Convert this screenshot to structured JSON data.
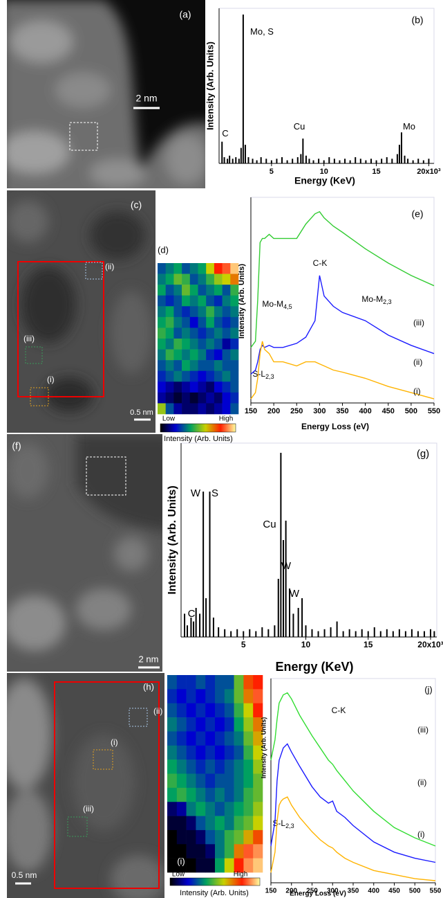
{
  "images": [
    {
      "label": "(a)",
      "scale_bar": "2 nm"
    },
    {
      "label": "(c)",
      "scale_bar": "0.5 nm",
      "regions": [
        "(ii)",
        "(iii)",
        "(i)"
      ]
    },
    {
      "label": "(f)",
      "scale_bar": "2 nm"
    },
    {
      "label": "(h)",
      "scale_bar": "0.5 nm",
      "regions": [
        "(ii)",
        "(i)",
        "(iii)"
      ]
    }
  ],
  "chart_data": [
    {
      "type": "bar",
      "label": "(b)",
      "x_label": "Energy (KeV)",
      "y_label": "Intensity (Arb. Units)",
      "color": "#000000",
      "x": [
        0.28,
        0.5,
        0.8,
        1.0,
        1.3,
        1.6,
        1.9,
        2.1,
        2.3,
        2.5,
        2.8,
        3.2,
        3.6,
        4.0,
        4.5,
        5.0,
        5.5,
        6.0,
        6.5,
        7.0,
        7.5,
        7.8,
        8.0,
        8.3,
        8.6,
        9.0,
        9.5,
        10.0,
        10.5,
        11.0,
        11.5,
        12.0,
        12.5,
        13.0,
        13.5,
        14.0,
        14.5,
        15.0,
        15.5,
        16.0,
        16.5,
        17.0,
        17.2,
        17.4,
        17.7,
        18.0,
        18.5,
        19.0,
        19.5,
        20.0
      ],
      "values": [
        0.14,
        0.04,
        0.03,
        0.05,
        0.03,
        0.04,
        0.03,
        0.1,
        0.96,
        0.12,
        0.04,
        0.03,
        0.02,
        0.04,
        0.03,
        0.02,
        0.03,
        0.04,
        0.02,
        0.03,
        0.04,
        0.06,
        0.16,
        0.05,
        0.03,
        0.02,
        0.03,
        0.02,
        0.04,
        0.03,
        0.02,
        0.03,
        0.02,
        0.04,
        0.03,
        0.02,
        0.03,
        0.02,
        0.03,
        0.04,
        0.03,
        0.06,
        0.12,
        0.2,
        0.05,
        0.03,
        0.02,
        0.03,
        0.02,
        0.03
      ],
      "xlim": [
        0,
        20.5
      ],
      "ylim": [
        0,
        1
      ],
      "xticks": [
        5,
        10,
        15,
        {
          "value": 20,
          "label": "20x10³"
        }
      ],
      "annotations": [
        {
          "text": "Mo, S"
        },
        {
          "text": "C"
        },
        {
          "text": "Cu"
        },
        {
          "text": "Mo"
        }
      ]
    },
    {
      "type": "heatmap",
      "label": "(d)",
      "values": [
        [
          0.3,
          0.35,
          0.4,
          0.3,
          0.35,
          0.4,
          0.6,
          0.8,
          0.85,
          0.95
        ],
        [
          0.35,
          0.4,
          0.5,
          0.45,
          0.3,
          0.35,
          0.45,
          0.55,
          0.6,
          0.7
        ],
        [
          0.4,
          0.3,
          0.35,
          0.5,
          0.4,
          0.3,
          0.35,
          0.4,
          0.3,
          0.45
        ],
        [
          0.3,
          0.25,
          0.3,
          0.4,
          0.35,
          0.4,
          0.3,
          0.25,
          0.35,
          0.4
        ],
        [
          0.35,
          0.4,
          0.3,
          0.25,
          0.3,
          0.35,
          0.45,
          0.35,
          0.3,
          0.35
        ],
        [
          0.4,
          0.45,
          0.35,
          0.3,
          0.2,
          0.3,
          0.4,
          0.3,
          0.25,
          0.3
        ],
        [
          0.45,
          0.4,
          0.3,
          0.35,
          0.3,
          0.25,
          0.3,
          0.35,
          0.3,
          0.35
        ],
        [
          0.4,
          0.35,
          0.45,
          0.4,
          0.35,
          0.3,
          0.35,
          0.3,
          0.15,
          0.25
        ],
        [
          0.35,
          0.45,
          0.4,
          0.35,
          0.4,
          0.35,
          0.25,
          0.2,
          0.3,
          0.35
        ],
        [
          0.3,
          0.35,
          0.3,
          0.4,
          0.35,
          0.3,
          0.3,
          0.35,
          0.3,
          0.3
        ],
        [
          0.25,
          0.3,
          0.35,
          0.3,
          0.25,
          0.2,
          0.25,
          0.3,
          0.35,
          0.3
        ],
        [
          0.2,
          0.15,
          0.1,
          0.15,
          0.2,
          0.15,
          0.1,
          0.2,
          0.25,
          0.3
        ],
        [
          0.15,
          0.1,
          0.05,
          0.1,
          0.05,
          0.1,
          0.15,
          0.1,
          0.2,
          0.25
        ],
        [
          0.55,
          0.3,
          0.15,
          0.1,
          0.1,
          0.15,
          0.1,
          0.15,
          0.2,
          0.3
        ]
      ],
      "colormap": [
        "#000000",
        "#0000d0",
        "#00a060",
        "#c8d000",
        "#ff2000",
        "#ffffa0"
      ],
      "colorbar": {
        "low": "Low",
        "high": "High",
        "title": "Intensity (Arb. Units)"
      }
    },
    {
      "type": "line",
      "label": "(e)",
      "x_label": "Energy Loss (eV)",
      "y_label": "Intensity (Arb. Units)",
      "x": [
        150,
        160,
        165,
        170,
        175,
        180,
        190,
        200,
        220,
        250,
        270,
        290,
        300,
        310,
        330,
        350,
        400,
        450,
        500,
        550
      ],
      "series": [
        {
          "name": "(iii)",
          "color": "#33cc33",
          "values": [
            0.27,
            0.3,
            0.5,
            0.78,
            0.8,
            0.8,
            0.82,
            0.8,
            0.8,
            0.8,
            0.87,
            0.92,
            0.93,
            0.9,
            0.86,
            0.83,
            0.75,
            0.68,
            0.62,
            0.57
          ]
        },
        {
          "name": "(ii)",
          "color": "#1a1aff",
          "values": [
            0.14,
            0.16,
            0.2,
            0.26,
            0.28,
            0.27,
            0.28,
            0.27,
            0.27,
            0.29,
            0.32,
            0.4,
            0.62,
            0.52,
            0.47,
            0.44,
            0.4,
            0.33,
            0.28,
            0.24
          ]
        },
        {
          "name": "(i)",
          "color": "#ffb300",
          "values": [
            0.02,
            0.05,
            0.12,
            0.24,
            0.3,
            0.26,
            0.24,
            0.2,
            0.2,
            0.18,
            0.2,
            0.2,
            0.19,
            0.18,
            0.16,
            0.15,
            0.12,
            0.08,
            0.05,
            0.02
          ]
        }
      ],
      "xlim": [
        150,
        550
      ],
      "ylim": [
        0,
        1
      ],
      "xticks": [
        150,
        200,
        250,
        300,
        350,
        400,
        450,
        500,
        550
      ],
      "annotations": [
        {
          "text": "C-K"
        },
        {
          "text": "Mo-M",
          "sub": "4,5"
        },
        {
          "text": "Mo-M",
          "sub": "2,3"
        },
        {
          "text": "S-L",
          "sub": "2,3"
        }
      ]
    },
    {
      "type": "bar",
      "label": "(g)",
      "x_label": "Energy (KeV)",
      "y_label": "Intensity (Arb. Units)",
      "color": "#000000",
      "x": [
        0.28,
        0.5,
        0.8,
        1.0,
        1.2,
        1.5,
        1.78,
        2.0,
        2.3,
        2.6,
        3.0,
        3.5,
        4.0,
        4.5,
        5.0,
        5.5,
        6.0,
        6.5,
        7.0,
        7.5,
        7.8,
        8.0,
        8.2,
        8.4,
        8.7,
        9.0,
        9.4,
        9.7,
        10.0,
        10.5,
        11.0,
        11.5,
        12.0,
        12.5,
        13.0,
        13.5,
        14.0,
        14.5,
        15.0,
        15.5,
        16.0,
        16.5,
        17.0,
        17.5,
        18.0,
        18.5,
        19.0,
        19.5,
        20.0,
        20.3
      ],
      "values": [
        0.12,
        0.06,
        0.1,
        0.08,
        0.15,
        0.12,
        0.75,
        0.2,
        0.75,
        0.1,
        0.05,
        0.04,
        0.03,
        0.04,
        0.03,
        0.04,
        0.03,
        0.05,
        0.04,
        0.06,
        0.3,
        0.95,
        0.5,
        0.6,
        0.25,
        0.12,
        0.15,
        0.2,
        0.06,
        0.04,
        0.03,
        0.04,
        0.05,
        0.08,
        0.03,
        0.04,
        0.03,
        0.04,
        0.03,
        0.05,
        0.03,
        0.04,
        0.03,
        0.04,
        0.03,
        0.04,
        0.03,
        0.03,
        0.04,
        0.03
      ],
      "xlim": [
        0,
        20.5
      ],
      "ylim": [
        0,
        1
      ],
      "xticks": [
        5,
        10,
        15,
        {
          "value": 20,
          "label": "20x10³"
        }
      ],
      "annotations": [
        {
          "text": "W"
        },
        {
          "text": "S"
        },
        {
          "text": "Cu"
        },
        {
          "text": "W"
        },
        {
          "text": "W"
        },
        {
          "text": "C"
        }
      ]
    },
    {
      "type": "heatmap",
      "label": "(i)",
      "values": [
        [
          0.3,
          0.25,
          0.25,
          0.3,
          0.25,
          0.3,
          0.3,
          0.5,
          0.75,
          0.8
        ],
        [
          0.25,
          0.2,
          0.25,
          0.2,
          0.25,
          0.3,
          0.35,
          0.5,
          0.7,
          0.85
        ],
        [
          0.3,
          0.25,
          0.2,
          0.25,
          0.2,
          0.25,
          0.3,
          0.45,
          0.6,
          0.8
        ],
        [
          0.35,
          0.3,
          0.25,
          0.2,
          0.25,
          0.2,
          0.25,
          0.4,
          0.55,
          0.7
        ],
        [
          0.3,
          0.25,
          0.2,
          0.25,
          0.2,
          0.25,
          0.3,
          0.35,
          0.5,
          0.65
        ],
        [
          0.35,
          0.3,
          0.25,
          0.2,
          0.25,
          0.2,
          0.25,
          0.3,
          0.45,
          0.6
        ],
        [
          0.4,
          0.35,
          0.3,
          0.25,
          0.3,
          0.25,
          0.3,
          0.35,
          0.4,
          0.55
        ],
        [
          0.45,
          0.4,
          0.35,
          0.3,
          0.25,
          0.3,
          0.3,
          0.35,
          0.4,
          0.5
        ],
        [
          0.4,
          0.45,
          0.4,
          0.35,
          0.3,
          0.35,
          0.3,
          0.35,
          0.45,
          0.5
        ],
        [
          0.1,
          0.15,
          0.35,
          0.4,
          0.35,
          0.3,
          0.35,
          0.4,
          0.45,
          0.55
        ],
        [
          0.05,
          0.05,
          0.1,
          0.3,
          0.35,
          0.4,
          0.35,
          0.45,
          0.5,
          0.6
        ],
        [
          0,
          0.05,
          0.05,
          0.1,
          0.3,
          0.35,
          0.45,
          0.5,
          0.65,
          0.75
        ],
        [
          0,
          0,
          0.05,
          0.05,
          0.1,
          0.35,
          0.45,
          0.7,
          0.85,
          0.9
        ],
        [
          0,
          0,
          0,
          0.05,
          0.05,
          0.4,
          0.6,
          0.8,
          0.9,
          0.95
        ]
      ],
      "colormap": [
        "#000000",
        "#0000d0",
        "#00a060",
        "#c8d000",
        "#ff2000",
        "#ffffa0"
      ],
      "colorbar": {
        "low": "Low",
        "high": "High",
        "title": "Intensity (Arb. Units)"
      }
    },
    {
      "type": "line",
      "label": "(j)",
      "x_label": "Energy Loss (eV)",
      "y_label": "Intensity (Arb. Units)",
      "x": [
        150,
        160,
        165,
        170,
        175,
        180,
        190,
        200,
        220,
        250,
        270,
        290,
        300,
        310,
        330,
        350,
        400,
        450,
        500,
        550
      ],
      "series": [
        {
          "name": "(iii)",
          "color": "#33dd33",
          "values": [
            0.6,
            0.7,
            0.8,
            0.88,
            0.9,
            0.92,
            0.93,
            0.9,
            0.82,
            0.72,
            0.66,
            0.6,
            0.58,
            0.55,
            0.5,
            0.45,
            0.35,
            0.27,
            0.22,
            0.18
          ]
        },
        {
          "name": "(ii)",
          "color": "#1a1aff",
          "values": [
            0.18,
            0.3,
            0.5,
            0.6,
            0.63,
            0.66,
            0.68,
            0.64,
            0.57,
            0.47,
            0.42,
            0.39,
            0.4,
            0.35,
            0.32,
            0.28,
            0.2,
            0.15,
            0.12,
            0.1
          ]
        },
        {
          "name": "(i)",
          "color": "#ffb300",
          "values": [
            0.05,
            0.15,
            0.3,
            0.38,
            0.4,
            0.41,
            0.42,
            0.38,
            0.32,
            0.25,
            0.21,
            0.18,
            0.17,
            0.15,
            0.12,
            0.1,
            0.06,
            0.04,
            0.02,
            0.01
          ]
        }
      ],
      "xlim": [
        150,
        550
      ],
      "ylim": [
        0,
        1
      ],
      "xticks": [
        150,
        200,
        250,
        300,
        350,
        400,
        450,
        500,
        550
      ],
      "annotations": [
        {
          "text": "C-K"
        },
        {
          "text": "S-L",
          "sub": "2,3"
        }
      ]
    }
  ]
}
